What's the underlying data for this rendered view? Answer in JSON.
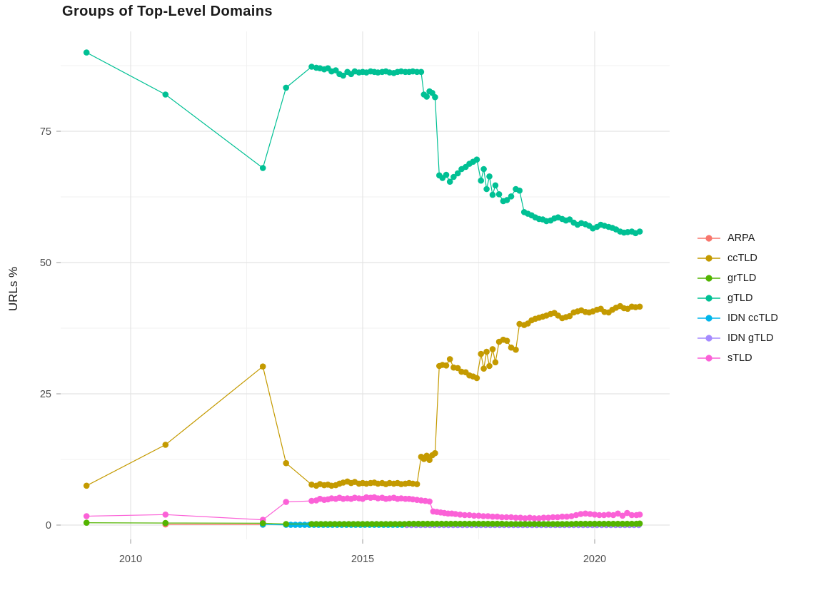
{
  "chart_data": {
    "type": "line",
    "title": "Groups of Top-Level Domains",
    "ylabel": "URLs %",
    "xlabel": "",
    "x_ticks": [
      2010,
      2015,
      2020
    ],
    "y_ticks": [
      0,
      25,
      50,
      75
    ],
    "x_minor": [
      2012.5,
      2017.5
    ],
    "y_minor": [
      12.5,
      37.5,
      62.5,
      87.5
    ],
    "xlim": [
      2008.5,
      2021.6
    ],
    "ylim": [
      -2.7,
      94
    ],
    "grid": "major+minor",
    "legend_position": "right",
    "colors": {
      "major_grid": "#e4e4e4",
      "minor_grid": "#f2f2f2",
      "tick": "#9a9a9a",
      "tick_text": "#4d4d4d",
      "text": "#1a1a1a"
    },
    "draw_order": [
      "ARPA",
      "IDN ccTLD",
      "IDN gTLD",
      "ccTLD",
      "sTLD",
      "grTLD",
      "gTLD"
    ],
    "series": [
      {
        "name": "ARPA",
        "color": "#F8766D",
        "points": [
          [
            2010.75,
            0.12
          ],
          [
            2012.85,
            0.08
          ]
        ]
      },
      {
        "name": "ccTLD",
        "color": "#C49A00",
        "points": [
          [
            2009.05,
            7.5
          ],
          [
            2010.75,
            15.3
          ],
          [
            2012.85,
            30.2
          ],
          [
            2013.35,
            11.8
          ],
          [
            2013.9,
            7.7
          ],
          [
            2014.0,
            7.5
          ],
          [
            2014.08,
            7.8
          ],
          [
            2014.17,
            7.6
          ],
          [
            2014.25,
            7.7
          ],
          [
            2014.33,
            7.5
          ],
          [
            2014.42,
            7.6
          ],
          [
            2014.5,
            7.9
          ],
          [
            2014.58,
            8.1
          ],
          [
            2014.67,
            8.3
          ],
          [
            2014.75,
            8.0
          ],
          [
            2014.83,
            8.2
          ],
          [
            2014.92,
            7.9
          ],
          [
            2015.0,
            8.0
          ],
          [
            2015.08,
            7.9
          ],
          [
            2015.17,
            8.0
          ],
          [
            2015.25,
            8.1
          ],
          [
            2015.33,
            7.9
          ],
          [
            2015.42,
            8.0
          ],
          [
            2015.5,
            7.8
          ],
          [
            2015.58,
            8.0
          ],
          [
            2015.67,
            7.9
          ],
          [
            2015.75,
            8.0
          ],
          [
            2015.83,
            7.8
          ],
          [
            2015.92,
            7.9
          ],
          [
            2016.0,
            8.0
          ],
          [
            2016.08,
            7.9
          ],
          [
            2016.17,
            7.8
          ],
          [
            2016.26,
            13.0
          ],
          [
            2016.32,
            12.6
          ],
          [
            2016.38,
            13.2
          ],
          [
            2016.44,
            12.4
          ],
          [
            2016.5,
            13.3
          ],
          [
            2016.56,
            13.7
          ],
          [
            2016.65,
            30.3
          ],
          [
            2016.72,
            30.5
          ],
          [
            2016.8,
            30.4
          ],
          [
            2016.88,
            31.6
          ],
          [
            2016.96,
            30.0
          ],
          [
            2017.05,
            29.9
          ],
          [
            2017.13,
            29.2
          ],
          [
            2017.22,
            29.1
          ],
          [
            2017.3,
            28.5
          ],
          [
            2017.38,
            28.3
          ],
          [
            2017.46,
            28.0
          ],
          [
            2017.55,
            32.6
          ],
          [
            2017.61,
            29.8
          ],
          [
            2017.67,
            33.0
          ],
          [
            2017.73,
            30.3
          ],
          [
            2017.8,
            33.5
          ],
          [
            2017.86,
            31.0
          ],
          [
            2017.94,
            34.9
          ],
          [
            2018.03,
            35.3
          ],
          [
            2018.11,
            35.1
          ],
          [
            2018.2,
            33.8
          ],
          [
            2018.3,
            33.4
          ],
          [
            2018.38,
            38.3
          ],
          [
            2018.48,
            38.1
          ],
          [
            2018.56,
            38.4
          ],
          [
            2018.64,
            39.0
          ],
          [
            2018.72,
            39.3
          ],
          [
            2018.8,
            39.5
          ],
          [
            2018.88,
            39.7
          ],
          [
            2018.96,
            39.9
          ],
          [
            2019.05,
            40.2
          ],
          [
            2019.13,
            40.4
          ],
          [
            2019.21,
            39.9
          ],
          [
            2019.3,
            39.4
          ],
          [
            2019.38,
            39.6
          ],
          [
            2019.46,
            39.8
          ],
          [
            2019.55,
            40.5
          ],
          [
            2019.63,
            40.7
          ],
          [
            2019.71,
            40.9
          ],
          [
            2019.8,
            40.6
          ],
          [
            2019.88,
            40.5
          ],
          [
            2019.96,
            40.7
          ],
          [
            2020.05,
            41.0
          ],
          [
            2020.13,
            41.2
          ],
          [
            2020.21,
            40.6
          ],
          [
            2020.3,
            40.5
          ],
          [
            2020.38,
            41.0
          ],
          [
            2020.46,
            41.4
          ],
          [
            2020.55,
            41.7
          ],
          [
            2020.63,
            41.3
          ],
          [
            2020.71,
            41.2
          ],
          [
            2020.8,
            41.6
          ],
          [
            2020.88,
            41.5
          ],
          [
            2020.97,
            41.6
          ]
        ]
      },
      {
        "name": "grTLD",
        "color": "#53B400",
        "points": [
          [
            2009.05,
            0.45
          ],
          [
            2010.75,
            0.4
          ],
          [
            2012.85,
            0.35
          ],
          [
            2013.35,
            0.2
          ],
          {
            "from": 2013.9,
            "to": 2015.9,
            "step": 0.1,
            "y": 0.2
          },
          {
            "from": 2016.0,
            "to": 2018.0,
            "step": 0.1,
            "y": 0.25
          },
          {
            "from": 2018.1,
            "to": 2019.5,
            "step": 0.1,
            "y": 0.2
          },
          {
            "from": 2019.6,
            "to": 2020.9,
            "step": 0.1,
            "y": 0.25
          },
          [
            2020.97,
            0.3
          ]
        ]
      },
      {
        "name": "gTLD",
        "color": "#00C094",
        "points": [
          [
            2009.05,
            90.0
          ],
          [
            2010.75,
            82.0
          ],
          [
            2012.85,
            68.0
          ],
          [
            2013.35,
            83.3
          ],
          [
            2013.9,
            87.3
          ],
          [
            2014.0,
            87.1
          ],
          [
            2014.08,
            87.0
          ],
          [
            2014.17,
            86.8
          ],
          [
            2014.25,
            87.0
          ],
          [
            2014.33,
            86.4
          ],
          [
            2014.42,
            86.6
          ],
          [
            2014.5,
            85.9
          ],
          [
            2014.58,
            85.6
          ],
          [
            2014.67,
            86.3
          ],
          [
            2014.75,
            85.9
          ],
          [
            2014.83,
            86.4
          ],
          [
            2014.92,
            86.2
          ],
          [
            2015.0,
            86.3
          ],
          [
            2015.08,
            86.2
          ],
          [
            2015.17,
            86.4
          ],
          [
            2015.25,
            86.3
          ],
          [
            2015.33,
            86.2
          ],
          [
            2015.42,
            86.3
          ],
          [
            2015.5,
            86.4
          ],
          [
            2015.58,
            86.2
          ],
          [
            2015.67,
            86.1
          ],
          [
            2015.75,
            86.3
          ],
          [
            2015.83,
            86.4
          ],
          [
            2015.92,
            86.3
          ],
          [
            2016.0,
            86.3
          ],
          [
            2016.08,
            86.4
          ],
          [
            2016.17,
            86.3
          ],
          [
            2016.26,
            86.3
          ],
          [
            2016.32,
            82.0
          ],
          [
            2016.38,
            81.6
          ],
          [
            2016.44,
            82.6
          ],
          [
            2016.5,
            82.3
          ],
          [
            2016.56,
            81.5
          ],
          [
            2016.65,
            66.6
          ],
          [
            2016.72,
            66.1
          ],
          [
            2016.8,
            66.7
          ],
          [
            2016.88,
            65.4
          ],
          [
            2016.96,
            66.3
          ],
          [
            2017.05,
            67.0
          ],
          [
            2017.13,
            67.8
          ],
          [
            2017.22,
            68.2
          ],
          [
            2017.3,
            68.8
          ],
          [
            2017.38,
            69.2
          ],
          [
            2017.46,
            69.6
          ],
          [
            2017.55,
            65.6
          ],
          [
            2017.61,
            67.8
          ],
          [
            2017.67,
            64.0
          ],
          [
            2017.73,
            66.4
          ],
          [
            2017.8,
            62.9
          ],
          [
            2017.86,
            64.7
          ],
          [
            2017.94,
            63.0
          ],
          [
            2018.03,
            61.7
          ],
          [
            2018.11,
            61.9
          ],
          [
            2018.2,
            62.6
          ],
          [
            2018.3,
            64.0
          ],
          [
            2018.38,
            63.7
          ],
          [
            2018.48,
            59.6
          ],
          [
            2018.56,
            59.3
          ],
          [
            2018.64,
            59.0
          ],
          [
            2018.72,
            58.6
          ],
          [
            2018.8,
            58.3
          ],
          [
            2018.88,
            58.2
          ],
          [
            2018.96,
            57.9
          ],
          [
            2019.05,
            58.0
          ],
          [
            2019.13,
            58.4
          ],
          [
            2019.21,
            58.6
          ],
          [
            2019.3,
            58.3
          ],
          [
            2019.38,
            58.0
          ],
          [
            2019.46,
            58.2
          ],
          [
            2019.55,
            57.6
          ],
          [
            2019.63,
            57.2
          ],
          [
            2019.71,
            57.5
          ],
          [
            2019.8,
            57.3
          ],
          [
            2019.88,
            57.0
          ],
          [
            2019.96,
            56.5
          ],
          [
            2020.05,
            56.8
          ],
          [
            2020.13,
            57.2
          ],
          [
            2020.21,
            57.0
          ],
          [
            2020.3,
            56.8
          ],
          [
            2020.38,
            56.6
          ],
          [
            2020.46,
            56.3
          ],
          [
            2020.55,
            55.9
          ],
          [
            2020.63,
            55.7
          ],
          [
            2020.71,
            55.8
          ],
          [
            2020.8,
            55.9
          ],
          [
            2020.88,
            55.6
          ],
          [
            2020.97,
            55.9
          ]
        ]
      },
      {
        "name": "IDN ccTLD",
        "color": "#00B6EB",
        "points": [
          [
            2012.85,
            0.1
          ],
          {
            "from": 2013.35,
            "to": 2020.95,
            "step": 0.1,
            "y": 0.05
          }
        ]
      },
      {
        "name": "IDN gTLD",
        "color": "#A58AFF",
        "points": [
          {
            "from": 2015.95,
            "to": 2020.95,
            "step": 0.1,
            "y": 0.0
          }
        ]
      },
      {
        "name": "sTLD",
        "color": "#FB61D7",
        "points": [
          [
            2009.05,
            1.7
          ],
          [
            2010.75,
            2.0
          ],
          [
            2012.85,
            1.0
          ],
          [
            2013.35,
            4.4
          ],
          [
            2013.9,
            4.6
          ],
          [
            2014.0,
            4.7
          ],
          [
            2014.08,
            5.0
          ],
          [
            2014.17,
            4.8
          ],
          [
            2014.25,
            4.9
          ],
          [
            2014.33,
            5.1
          ],
          [
            2014.42,
            5.0
          ],
          [
            2014.5,
            5.2
          ],
          [
            2014.58,
            5.0
          ],
          [
            2014.67,
            5.1
          ],
          [
            2014.75,
            5.0
          ],
          [
            2014.83,
            5.2
          ],
          [
            2014.92,
            5.1
          ],
          [
            2015.0,
            5.0
          ],
          [
            2015.08,
            5.3
          ],
          [
            2015.17,
            5.2
          ],
          [
            2015.25,
            5.3
          ],
          [
            2015.33,
            5.1
          ],
          [
            2015.42,
            5.2
          ],
          [
            2015.5,
            5.0
          ],
          [
            2015.58,
            5.1
          ],
          [
            2015.67,
            5.2
          ],
          [
            2015.75,
            5.0
          ],
          [
            2015.83,
            5.1
          ],
          [
            2015.92,
            5.0
          ],
          [
            2016.0,
            5.0
          ],
          [
            2016.08,
            4.9
          ],
          [
            2016.17,
            4.8
          ],
          [
            2016.26,
            4.7
          ],
          [
            2016.35,
            4.6
          ],
          [
            2016.44,
            4.5
          ],
          [
            2016.52,
            2.6
          ],
          [
            2016.6,
            2.5
          ],
          [
            2016.68,
            2.4
          ],
          [
            2016.76,
            2.3
          ],
          [
            2016.84,
            2.2
          ],
          [
            2016.92,
            2.2
          ],
          [
            2017.0,
            2.1
          ],
          [
            2017.1,
            2.0
          ],
          [
            2017.2,
            1.9
          ],
          [
            2017.3,
            1.9
          ],
          [
            2017.4,
            1.8
          ],
          [
            2017.5,
            1.8
          ],
          [
            2017.6,
            1.7
          ],
          [
            2017.7,
            1.7
          ],
          [
            2017.8,
            1.6
          ],
          [
            2017.9,
            1.6
          ],
          [
            2018.0,
            1.5
          ],
          [
            2018.1,
            1.5
          ],
          [
            2018.2,
            1.5
          ],
          [
            2018.3,
            1.4
          ],
          [
            2018.4,
            1.4
          ],
          [
            2018.5,
            1.3
          ],
          [
            2018.6,
            1.4
          ],
          [
            2018.7,
            1.3
          ],
          [
            2018.8,
            1.3
          ],
          [
            2018.9,
            1.4
          ],
          [
            2019.0,
            1.4
          ],
          [
            2019.1,
            1.5
          ],
          [
            2019.2,
            1.5
          ],
          [
            2019.3,
            1.6
          ],
          [
            2019.4,
            1.6
          ],
          [
            2019.5,
            1.7
          ],
          [
            2019.6,
            1.9
          ],
          [
            2019.7,
            2.1
          ],
          [
            2019.8,
            2.2
          ],
          [
            2019.9,
            2.1
          ],
          [
            2020.0,
            2.0
          ],
          [
            2020.1,
            1.9
          ],
          [
            2020.2,
            1.9
          ],
          [
            2020.3,
            2.0
          ],
          [
            2020.4,
            1.9
          ],
          [
            2020.5,
            2.2
          ],
          [
            2020.6,
            1.8
          ],
          [
            2020.7,
            2.3
          ],
          [
            2020.8,
            1.9
          ],
          [
            2020.9,
            1.9
          ],
          [
            2020.97,
            2.0
          ]
        ]
      }
    ]
  }
}
